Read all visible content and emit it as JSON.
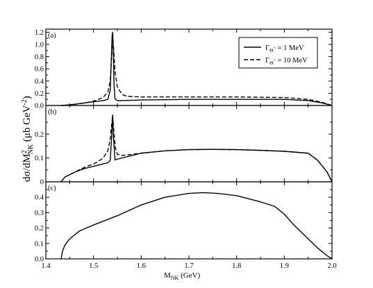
{
  "chart_data": {
    "type": "line",
    "xlabel": {
      "main": "M",
      "sub": "NK",
      "rest": " (GeV)"
    },
    "ylabel": {
      "a": "dσ/dM",
      "sup2": "2",
      "sub": "NK",
      "b": "  (μb GeV",
      "supm": "-2",
      "c": ")"
    },
    "xlim": [
      1.4,
      2.0
    ],
    "xticks": [
      "1.4",
      "1.5",
      "1.6",
      "1.7",
      "1.8",
      "1.9",
      "2.0"
    ],
    "legend": {
      "placement": "top-right of panel (a)",
      "entries": [
        {
          "gamma": "Γ",
          "sub": "Θ",
          "subsup": "+",
          "value": " = 1 MeV",
          "style": "solid"
        },
        {
          "gamma": "Γ",
          "sub": "Θ",
          "subsup": "+",
          "value": " = 10 MeV",
          "style": "dashed"
        }
      ]
    },
    "panels": [
      {
        "label": "(a)",
        "ylim": [
          0,
          1.25
        ],
        "yticks": [
          "0.0",
          "0.2",
          "0.4",
          "0.6",
          "0.8",
          "1.0",
          "1.2"
        ],
        "series": [
          {
            "style": "solid",
            "x": [
              1.432,
              1.45,
              1.48,
              1.5,
              1.52,
              1.53,
              1.535,
              1.537,
              1.539,
              1.54,
              1.541,
              1.543,
              1.545,
              1.55,
              1.56,
              1.6,
              1.7,
              1.8,
              1.9,
              1.95,
              1.98,
              2.0
            ],
            "y": [
              0.0,
              0.01,
              0.04,
              0.06,
              0.08,
              0.1,
              0.25,
              0.7,
              1.15,
              1.2,
              1.05,
              0.35,
              0.11,
              0.08,
              0.08,
              0.09,
              0.1,
              0.1,
              0.1,
              0.08,
              0.04,
              0.0
            ]
          },
          {
            "style": "dashed",
            "x": [
              1.432,
              1.45,
              1.48,
              1.5,
              1.52,
              1.53,
              1.535,
              1.538,
              1.54,
              1.542,
              1.545,
              1.55,
              1.56,
              1.57,
              1.6,
              1.7,
              1.8,
              1.9,
              1.95,
              1.98,
              2.0
            ],
            "y": [
              0.0,
              0.01,
              0.04,
              0.07,
              0.13,
              0.22,
              0.4,
              0.8,
              1.1,
              0.95,
              0.55,
              0.3,
              0.18,
              0.15,
              0.14,
              0.14,
              0.14,
              0.13,
              0.1,
              0.05,
              0.0
            ]
          }
        ]
      },
      {
        "label": "(b)",
        "ylim": [
          0,
          0.32
        ],
        "yticks": [
          "0",
          "0.1",
          "0.2"
        ],
        "series": [
          {
            "style": "solid",
            "x": [
              1.432,
              1.44,
              1.46,
              1.48,
              1.5,
              1.52,
              1.53,
              1.535,
              1.538,
              1.54,
              1.542,
              1.545,
              1.55,
              1.56,
              1.58,
              1.6,
              1.65,
              1.7,
              1.75,
              1.8,
              1.85,
              1.9,
              1.95,
              1.97,
              1.99,
              2.0
            ],
            "y": [
              0.0,
              0.02,
              0.04,
              0.055,
              0.065,
              0.075,
              0.08,
              0.09,
              0.19,
              0.28,
              0.18,
              0.092,
              0.095,
              0.1,
              0.11,
              0.12,
              0.13,
              0.135,
              0.136,
              0.135,
              0.132,
              0.128,
              0.12,
              0.09,
              0.04,
              0.0
            ]
          },
          {
            "style": "dashed",
            "x": [
              1.432,
              1.44,
              1.46,
              1.48,
              1.5,
              1.51,
              1.52,
              1.53,
              1.535,
              1.538,
              1.54,
              1.543,
              1.546,
              1.55,
              1.56,
              1.58,
              1.6,
              1.65,
              1.7,
              1.75,
              1.8,
              1.85,
              1.9,
              1.95,
              1.97,
              1.99,
              2.0
            ],
            "y": [
              0.0,
              0.02,
              0.04,
              0.06,
              0.075,
              0.085,
              0.1,
              0.13,
              0.18,
              0.24,
              0.28,
              0.2,
              0.14,
              0.115,
              0.11,
              0.115,
              0.12,
              0.13,
              0.135,
              0.136,
              0.135,
              0.132,
              0.128,
              0.12,
              0.09,
              0.04,
              0.0
            ]
          }
        ]
      },
      {
        "label": "(c)",
        "ylim": [
          0,
          0.5
        ],
        "yticks": [
          "0.0",
          "0.1",
          "0.2",
          "0.3",
          "0.4"
        ],
        "series": [
          {
            "style": "solid",
            "x": [
              1.432,
              1.435,
              1.44,
              1.45,
              1.47,
              1.5,
              1.55,
              1.6,
              1.65,
              1.7,
              1.73,
              1.76,
              1.8,
              1.85,
              1.88,
              1.9,
              1.92,
              1.95,
              1.97,
              1.99,
              2.0
            ],
            "y": [
              0.0,
              0.05,
              0.09,
              0.13,
              0.18,
              0.22,
              0.28,
              0.35,
              0.4,
              0.425,
              0.43,
              0.425,
              0.41,
              0.37,
              0.34,
              0.29,
              0.22,
              0.13,
              0.07,
              0.02,
              0.0
            ]
          }
        ]
      }
    ]
  }
}
